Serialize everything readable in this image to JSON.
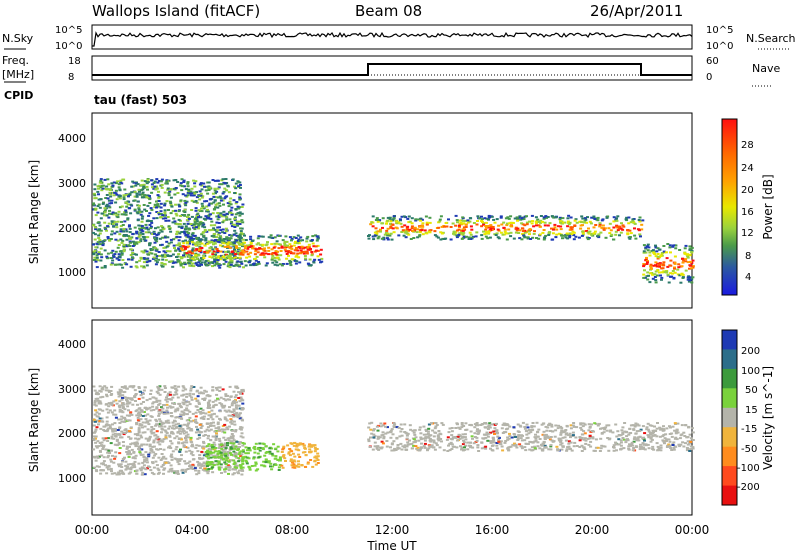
{
  "header": {
    "site": "Wallops Island (fitACF)",
    "beam": "Beam 08",
    "date": "26/Apr/2011"
  },
  "top_panels": {
    "nsky_label": "N.Sky",
    "nsky_ticks": [
      "10^5",
      "10^0"
    ],
    "nsearch_label": "N.Search",
    "nsearch_ticks": [
      "10^5",
      "10^0"
    ],
    "freq_label": "Freq.",
    "freq_unit": "[MHz]",
    "freq_ticks": [
      "18",
      "8"
    ],
    "nave_label": "Nave",
    "nave_ticks": [
      "60",
      "0"
    ],
    "cpid_label": "CPID",
    "cpid_value": "tau (fast) 503"
  },
  "chart_data": [
    {
      "type": "heatmap",
      "panel": "power",
      "xlabel": "",
      "ylabel": "Slant Range [km]",
      "x_ticks": [
        "00:00",
        "04:00",
        "08:00",
        "12:00",
        "16:00",
        "20:00",
        "00:00"
      ],
      "y_ticks": [
        "1000",
        "2000",
        "3000",
        "4000"
      ],
      "ylim": [
        0,
        4500
      ],
      "colorbar": {
        "label": "Power [dB]",
        "ticks": [
          "28",
          "24",
          "20",
          "16",
          "12",
          "8",
          "4"
        ],
        "colors": [
          "#ff1010",
          "#ff5a00",
          "#ffa000",
          "#e8e800",
          "#9ad23c",
          "#4a9a4a",
          "#2c7a6a",
          "#1e3ab4",
          "#1a1ae0"
        ]
      },
      "regions": [
        {
          "x": [
            0.0,
            6.0
          ],
          "y": [
            950,
            3000
          ],
          "level": "mixed"
        },
        {
          "x": [
            3.5,
            9.2
          ],
          "y": [
            1000,
            1700
          ],
          "level": "high"
        },
        {
          "x": [
            11.0,
            22.0
          ],
          "y": [
            1600,
            2150
          ],
          "level": "high"
        },
        {
          "x": [
            22.0,
            24.0
          ],
          "y": [
            600,
            1500
          ],
          "level": "high"
        }
      ]
    },
    {
      "type": "heatmap",
      "panel": "velocity",
      "xlabel": "Time UT",
      "ylabel": "Slant Range [km]",
      "x_ticks": [
        "00:00",
        "04:00",
        "08:00",
        "12:00",
        "16:00",
        "20:00",
        "00:00"
      ],
      "y_ticks": [
        "1000",
        "2000",
        "3000",
        "4000"
      ],
      "ylim": [
        0,
        4500
      ],
      "colorbar": {
        "label": "Velocity [m s^-1]",
        "ticks": [
          "200",
          "100",
          "50",
          "15",
          "-15",
          "-50",
          "-100",
          "-200"
        ],
        "colors": [
          "#1e3ab4",
          "#2c6e8a",
          "#3c9a3c",
          "#7ad23c",
          "#b4b4aa",
          "#f0b43c",
          "#ff8c1e",
          "#ff4a1e",
          "#e81010"
        ]
      },
      "regions": [
        {
          "x": [
            0.0,
            6.0
          ],
          "y": [
            950,
            3000
          ],
          "level": "ground-scatter"
        },
        {
          "x": [
            4.5,
            7.5
          ],
          "y": [
            1050,
            1700
          ],
          "level": "positive"
        },
        {
          "x": [
            7.5,
            9.0
          ],
          "y": [
            1100,
            1700
          ],
          "level": "negative"
        },
        {
          "x": [
            11.0,
            24.0
          ],
          "y": [
            1500,
            2150
          ],
          "level": "ground-scatter"
        }
      ]
    }
  ]
}
